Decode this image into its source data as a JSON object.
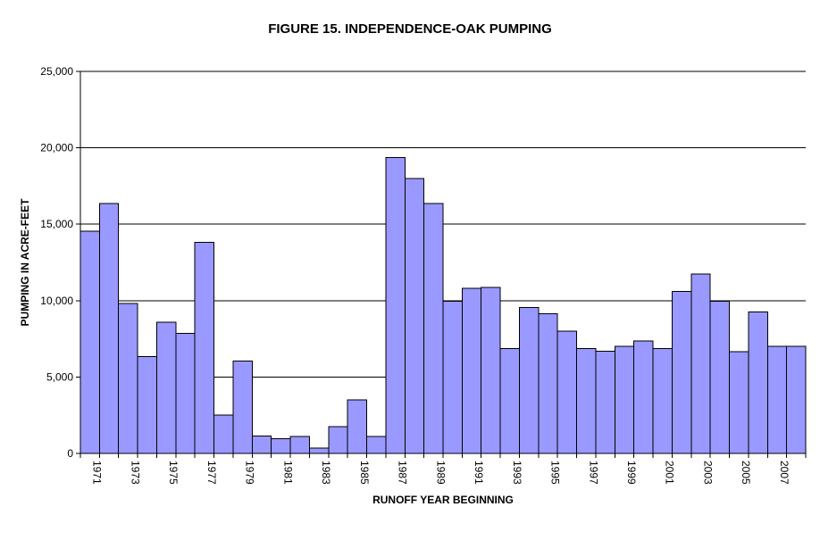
{
  "chart_data": {
    "type": "bar",
    "title": "FIGURE 15. INDEPENDENCE-OAK PUMPING",
    "xlabel": "RUNOFF YEAR BEGINNING",
    "ylabel": "PUMPING IN ACRE-FEET",
    "ylim": [
      0,
      25000
    ],
    "yticks": [
      0,
      5000,
      10000,
      15000,
      20000,
      25000
    ],
    "ytick_labels": [
      "0",
      "5,000",
      "10,000",
      "15,000",
      "20,000",
      "25,000"
    ],
    "grid": true,
    "bar_color": "#9999ff",
    "categories": [
      "1971",
      "1972",
      "1973",
      "1974",
      "1975",
      "1976",
      "1977",
      "1978",
      "1979",
      "1980",
      "1981",
      "1982",
      "1983",
      "1984",
      "1985",
      "1986",
      "1987",
      "1988",
      "1989",
      "1990",
      "1991",
      "1992",
      "1993",
      "1994",
      "1995",
      "1996",
      "1997",
      "1998",
      "1999",
      "2000",
      "2001",
      "2002",
      "2003",
      "2004",
      "2005",
      "2006",
      "2007",
      "2008"
    ],
    "xtick_labels": [
      "1971",
      "",
      "1973",
      "",
      "1975",
      "",
      "1977",
      "",
      "1979",
      "",
      "1981",
      "",
      "1983",
      "",
      "1985",
      "",
      "1987",
      "",
      "1989",
      "",
      "1991",
      "",
      "1993",
      "",
      "1995",
      "",
      "1997",
      "",
      "1999",
      "",
      "2001",
      "",
      "2003",
      "",
      "2005",
      "",
      "2007",
      ""
    ],
    "values": [
      14550,
      16350,
      9800,
      6350,
      8600,
      7850,
      13800,
      2500,
      6050,
      1150,
      950,
      1100,
      350,
      1750,
      3500,
      1100,
      19350,
      18000,
      16350,
      9950,
      10800,
      10850,
      6850,
      9550,
      9150,
      8000,
      6850,
      6700,
      7000,
      7350,
      6850,
      10600,
      11750,
      9950,
      6650,
      9250,
      7000,
      7000
    ]
  }
}
